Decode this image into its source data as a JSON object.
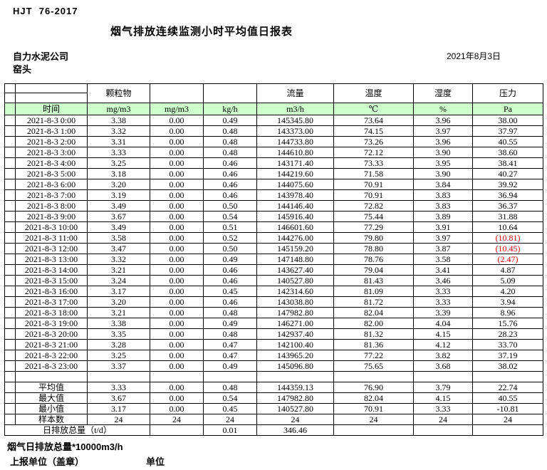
{
  "header": {
    "standard": "HJT  76-2017",
    "title": "烟气排放连续监测小时平均值日报表",
    "company": "自力水泥公司",
    "station": "窑头",
    "date": "2021年8月3日"
  },
  "table": {
    "group": {
      "pm": "颗粒物",
      "flow": "流量",
      "temp": "温度",
      "humidity": "湿度",
      "pressure": "压力"
    },
    "time_label": "时间",
    "units": [
      "mg/m3",
      "mg/m3",
      "kg/h",
      "m3/h",
      "℃",
      "%",
      "Pa"
    ],
    "rows": [
      {
        "time": "2021-8-3 0:00",
        "values": [
          "3.38",
          "0.00",
          "0.49",
          "145345.80",
          "73.64",
          "3.96",
          "38.00"
        ]
      },
      {
        "time": "2021-8-3 1:00",
        "values": [
          "3.32",
          "0.00",
          "0.48",
          "143373.00",
          "74.15",
          "3.97",
          "37.97"
        ]
      },
      {
        "time": "2021-8-3 2:00",
        "values": [
          "3.31",
          "0.00",
          "0.48",
          "144733.80",
          "73.26",
          "3.96",
          "40.55"
        ]
      },
      {
        "time": "2021-8-3 3:00",
        "values": [
          "3.33",
          "0.00",
          "0.48",
          "144610.80",
          "72.12",
          "3.90",
          "38.60"
        ]
      },
      {
        "time": "2021-8-3 4:00",
        "values": [
          "3.25",
          "0.00",
          "0.46",
          "143171.40",
          "73.33",
          "3.95",
          "38.41"
        ]
      },
      {
        "time": "2021-8-3 5:00",
        "values": [
          "3.18",
          "0.00",
          "0.46",
          "144219.60",
          "71.58",
          "3.90",
          "40.27"
        ]
      },
      {
        "time": "2021-8-3 6:00",
        "values": [
          "3.20",
          "0.00",
          "0.46",
          "144075.60",
          "70.91",
          "3.84",
          "39.92"
        ]
      },
      {
        "time": "2021-8-3 7:00",
        "values": [
          "3.19",
          "0.00",
          "0.46",
          "143978.40",
          "70.91",
          "3.83",
          "36.94"
        ]
      },
      {
        "time": "2021-8-3 8:00",
        "values": [
          "3.49",
          "0.00",
          "0.50",
          "144146.40",
          "72.82",
          "3.83",
          "36.37"
        ]
      },
      {
        "time": "2021-8-3 9:00",
        "values": [
          "3.67",
          "0.00",
          "0.54",
          "145916.40",
          "75.44",
          "3.89",
          "31.88"
        ]
      },
      {
        "time": "2021-8-3 10:00",
        "values": [
          "3.49",
          "0.00",
          "0.51",
          "146601.60",
          "77.29",
          "3.91",
          "10.64"
        ]
      },
      {
        "time": "2021-8-3 11:00",
        "values": [
          "3.58",
          "0.00",
          "0.52",
          "144276.00",
          "79.80",
          "3.97",
          "(10.81)"
        ]
      },
      {
        "time": "2021-8-3 12:00",
        "values": [
          "3.47",
          "0.00",
          "0.50",
          "145159.20",
          "78.80",
          "3.87",
          "(10.45)"
        ]
      },
      {
        "time": "2021-8-3 13:00",
        "values": [
          "3.32",
          "0.00",
          "0.49",
          "147148.80",
          "78.76",
          "3.58",
          "(2.47)"
        ]
      },
      {
        "time": "2021-8-3 14:00",
        "values": [
          "3.21",
          "0.00",
          "0.46",
          "143627.40",
          "79.04",
          "3.41",
          "4.87"
        ]
      },
      {
        "time": "2021-8-3 15:00",
        "values": [
          "3.24",
          "0.00",
          "0.46",
          "140527.80",
          "81.43",
          "3.46",
          "5.09"
        ]
      },
      {
        "time": "2021-8-3 16:00",
        "values": [
          "3.17",
          "0.00",
          "0.45",
          "142314.60",
          "81.09",
          "3.33",
          "4.20"
        ]
      },
      {
        "time": "2021-8-3 17:00",
        "values": [
          "3.20",
          "0.00",
          "0.46",
          "143038.80",
          "81.72",
          "3.33",
          "3.94"
        ]
      },
      {
        "time": "2021-8-3 18:00",
        "values": [
          "3.21",
          "0.00",
          "0.48",
          "147982.80",
          "82.04",
          "3.39",
          "8.96"
        ]
      },
      {
        "time": "2021-8-3 19:00",
        "values": [
          "3.38",
          "0.00",
          "0.49",
          "146271.00",
          "82.00",
          "4.04",
          "15.76"
        ]
      },
      {
        "time": "2021-8-3 20:00",
        "values": [
          "3.35",
          "0.00",
          "0.48",
          "142937.40",
          "81.32",
          "4.15",
          "28.23"
        ]
      },
      {
        "time": "2021-8-3 21:00",
        "values": [
          "3.28",
          "0.00",
          "0.47",
          "142100.40",
          "81.36",
          "4.12",
          "33.70"
        ]
      },
      {
        "time": "2021-8-3 22:00",
        "values": [
          "3.25",
          "0.00",
          "0.47",
          "143965.20",
          "77.22",
          "3.82",
          "37.19"
        ]
      },
      {
        "time": "2021-8-3 23:00",
        "values": [
          "3.37",
          "0.00",
          "0.49",
          "145096.80",
          "75.65",
          "3.68",
          "38.02"
        ]
      }
    ],
    "summary": [
      {
        "label": "平均值",
        "values": [
          "3.33",
          "0.00",
          "0.48",
          "144359.13",
          "76.90",
          "3.79",
          "22.74"
        ]
      },
      {
        "label": "最大值",
        "values": [
          "3.67",
          "0.00",
          "0.54",
          "147982.80",
          "82.04",
          "4.15",
          "40.55"
        ]
      },
      {
        "label": "最小值",
        "values": [
          "3.17",
          "0.00",
          "0.45",
          "140527.80",
          "70.91",
          "3.33",
          "-10.81"
        ]
      },
      {
        "label": "样本数",
        "values": [
          "24",
          "24",
          "24",
          "24",
          "24",
          "24",
          "24"
        ]
      }
    ],
    "daily_total": {
      "label": "日排放总量（t/d）",
      "values": [
        "",
        "0.01",
        "346.46",
        "",
        "",
        ""
      ]
    }
  },
  "footer": {
    "note": "烟气日排放总量*10000m3/h",
    "stamp": "上报单位（盖章）",
    "unit_label": "单位"
  },
  "colors": {
    "header_green": "#ccffcc",
    "negative_red": "#e00000"
  }
}
